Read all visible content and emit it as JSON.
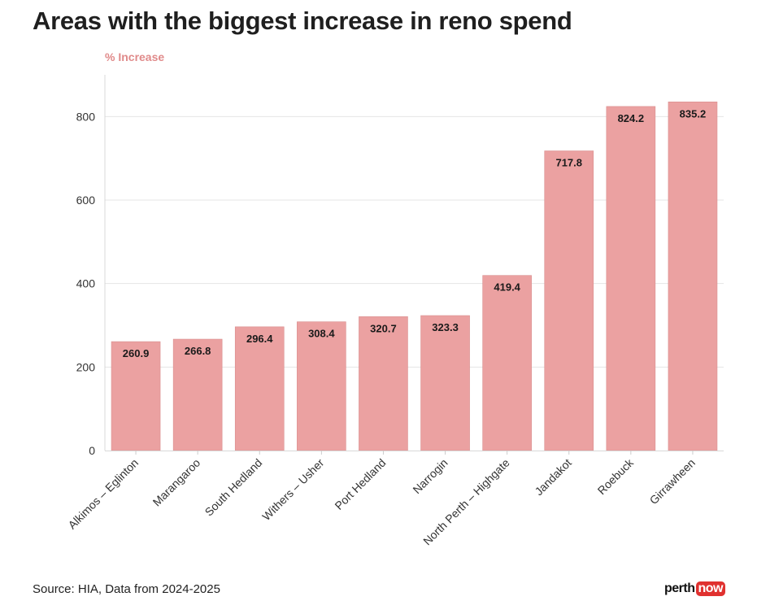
{
  "chart_data": {
    "type": "bar",
    "title": "Areas with the biggest increase in reno spend",
    "ylabel": "% Increase",
    "xlabel": "",
    "categories": [
      "Alkimos – Eglinton",
      "Marangaroo",
      "South Hedland",
      "Withers – Usher",
      "Port Hedland",
      "Narrogin",
      "North Perth – Highgate",
      "Jandakot",
      "Roebuck",
      "Girrawheen"
    ],
    "values": [
      260.9,
      266.8,
      296.4,
      308.4,
      320.7,
      323.3,
      419.4,
      717.8,
      824.2,
      835.2
    ],
    "value_labels": [
      "260.9",
      "266.8",
      "296.4",
      "308.4",
      "320.7",
      "323.3",
      "419.4",
      "717.8",
      "824.2",
      "835.2"
    ],
    "ylim": [
      0,
      900
    ],
    "yticks": [
      0,
      200,
      400,
      600,
      800
    ],
    "ytick_labels": [
      "0",
      "200",
      "400",
      "600",
      "800"
    ],
    "grid": true,
    "bar_color": "#eba1a1"
  },
  "footer": {
    "source": "Source: HIA, Data from 2024-2025",
    "logo_part1": "perth",
    "logo_part2": "now"
  }
}
